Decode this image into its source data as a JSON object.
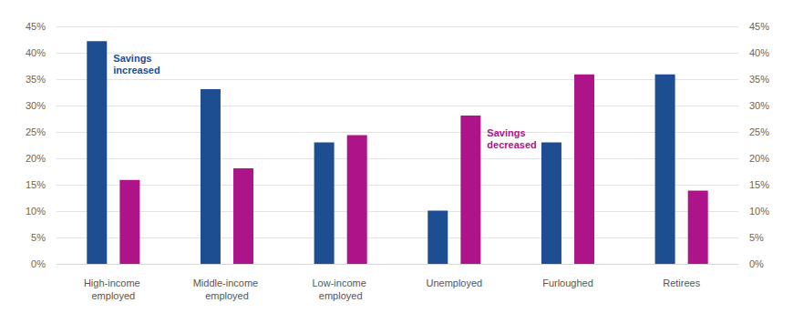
{
  "chart_data": {
    "type": "bar",
    "categories": [
      "High-income employed",
      "Middle-income employed",
      "Low-income employed",
      "Unemployed",
      "Furloughed",
      "Retirees"
    ],
    "series": [
      {
        "name": "Savings increased",
        "color": "#1d4e92",
        "values": [
          42.2,
          33.1,
          23.0,
          10.1,
          23.0,
          35.9
        ]
      },
      {
        "name": "Savings decreased",
        "color": "#ad1489",
        "values": [
          15.9,
          18.1,
          24.4,
          28.1,
          35.9,
          13.9
        ]
      }
    ],
    "ylim": [
      0,
      45
    ],
    "yticks": [
      {
        "value": 0,
        "label": "0%"
      },
      {
        "value": 5,
        "label": "5%"
      },
      {
        "value": 10,
        "label": "10%"
      },
      {
        "value": 15,
        "label": "15%"
      },
      {
        "value": 20,
        "label": "20%"
      },
      {
        "value": 25,
        "label": "25%"
      },
      {
        "value": 30,
        "label": "30%"
      },
      {
        "value": 35,
        "label": "35%"
      },
      {
        "value": 40,
        "label": "40%"
      },
      {
        "value": 45,
        "label": "45%"
      }
    ],
    "y2lim": [
      0,
      45
    ],
    "y2ticks": [
      {
        "value": 0,
        "label": "0%"
      },
      {
        "value": 5,
        "label": "5%"
      },
      {
        "value": 10,
        "label": "10%"
      },
      {
        "value": 15,
        "label": "15%"
      },
      {
        "value": 20,
        "label": "20%"
      },
      {
        "value": 25,
        "label": "25%"
      },
      {
        "value": 30,
        "label": "30%"
      },
      {
        "value": 35,
        "label": "35%"
      },
      {
        "value": 40,
        "label": "40%"
      },
      {
        "value": 45,
        "label": "45%"
      }
    ],
    "grid": true
  }
}
